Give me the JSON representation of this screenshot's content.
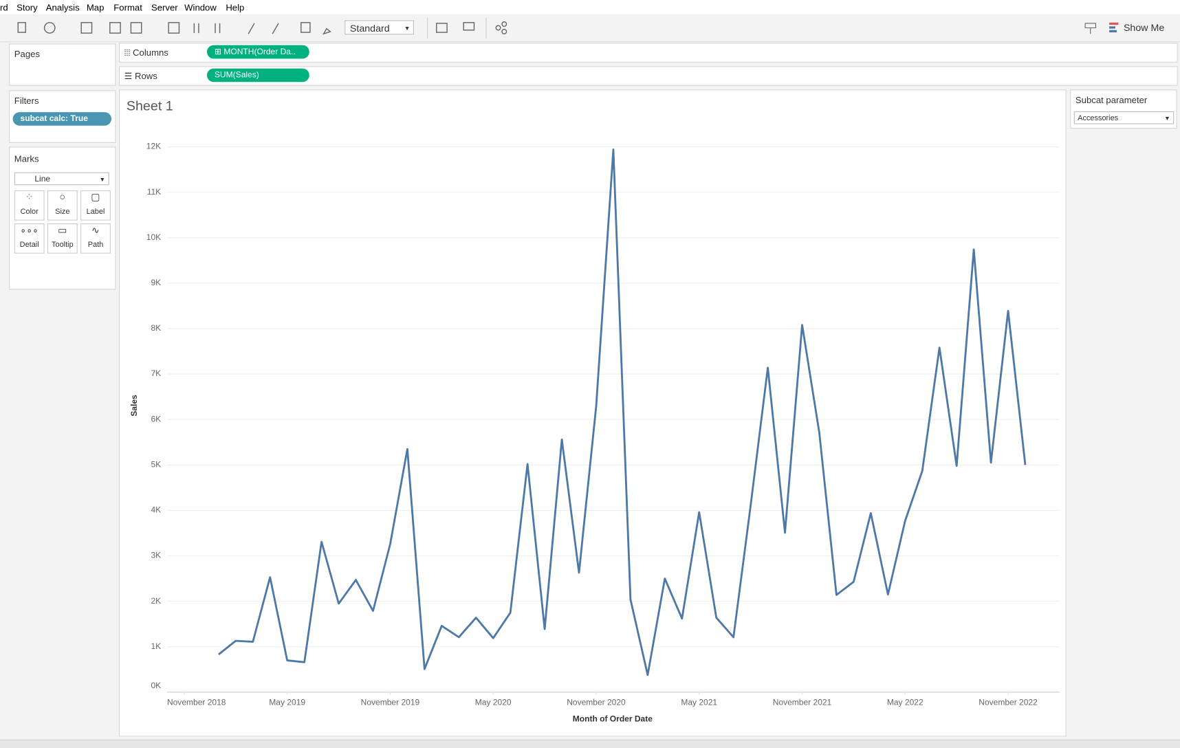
{
  "menu": [
    "rd",
    "Story",
    "Analysis",
    "Map",
    "Format",
    "Server",
    "Window",
    "Help"
  ],
  "toolbar": {
    "fit": "Standard",
    "show_me": "Show Me"
  },
  "shelves": {
    "pages": "Pages",
    "columns_label": "Columns",
    "columns_pill": "MONTH(Order Da..",
    "rows_label": "Rows",
    "rows_pill": "SUM(Sales)"
  },
  "filters": {
    "title": "Filters",
    "pill": "subcat calc: True"
  },
  "marks": {
    "title": "Marks",
    "type": "Line",
    "buttons": [
      "Color",
      "Size",
      "Label",
      "Detail",
      "Tooltip",
      "Path"
    ]
  },
  "parameter": {
    "title": "Subcat parameter",
    "value": "Accessories"
  },
  "chart_data": {
    "type": "line",
    "title": "Sheet 1",
    "x_label": "Month of Order Date",
    "y_label": "Sales",
    "color": "#4e79a7",
    "grid": true,
    "x": [
      "2019-01",
      "2019-02",
      "2019-03",
      "2019-04",
      "2019-05",
      "2019-06",
      "2019-07",
      "2019-08",
      "2019-09",
      "2019-10",
      "2019-11",
      "2019-12",
      "2020-01",
      "2020-02",
      "2020-03",
      "2020-04",
      "2020-05",
      "2020-06",
      "2020-07",
      "2020-08",
      "2020-09",
      "2020-10",
      "2020-11",
      "2020-12",
      "2021-01",
      "2021-02",
      "2021-03",
      "2021-04",
      "2021-05",
      "2021-06",
      "2021-07",
      "2021-08",
      "2021-09",
      "2021-10",
      "2021-11",
      "2021-12",
      "2022-01",
      "2022-02",
      "2022-03",
      "2022-04",
      "2022-05",
      "2022-06",
      "2022-07",
      "2022-08",
      "2022-09",
      "2022-10",
      "2022-11",
      "2022-12"
    ],
    "values": [
      830,
      1130,
      1110,
      2530,
      700,
      660,
      3310,
      1950,
      2470,
      1790,
      3260,
      5350,
      510,
      1460,
      1210,
      1640,
      1190,
      1750,
      5020,
      1390,
      5560,
      2630,
      6290,
      11940,
      2040,
      380,
      2500,
      1620,
      3960,
      1640,
      1210,
      4110,
      7140,
      3510,
      8080,
      5710,
      2140,
      2430,
      3940,
      2150,
      3770,
      4870,
      7580,
      4980,
      9740,
      5050,
      8390,
      5000
    ],
    "xlim": [
      "2018-10",
      "2023-02"
    ],
    "xticks": [
      {
        "value": "2018-11",
        "label": "November 2018"
      },
      {
        "value": "2019-05",
        "label": "May 2019"
      },
      {
        "value": "2019-11",
        "label": "November 2019"
      },
      {
        "value": "2020-05",
        "label": "May 2020"
      },
      {
        "value": "2020-11",
        "label": "November 2020"
      },
      {
        "value": "2021-05",
        "label": "May 2021"
      },
      {
        "value": "2021-11",
        "label": "November 2021"
      },
      {
        "value": "2022-05",
        "label": "May 2022"
      },
      {
        "value": "2022-11",
        "label": "November 2022"
      }
    ],
    "ylim": [
      0,
      12200
    ],
    "yticks": [
      {
        "value": 0,
        "label": "0K"
      },
      {
        "value": 1000,
        "label": "1K"
      },
      {
        "value": 2000,
        "label": "2K"
      },
      {
        "value": 3000,
        "label": "3K"
      },
      {
        "value": 4000,
        "label": "4K"
      },
      {
        "value": 5000,
        "label": "5K"
      },
      {
        "value": 6000,
        "label": "6K"
      },
      {
        "value": 7000,
        "label": "7K"
      },
      {
        "value": 8000,
        "label": "8K"
      },
      {
        "value": 9000,
        "label": "9K"
      },
      {
        "value": 10000,
        "label": "10K"
      },
      {
        "value": 11000,
        "label": "11K"
      },
      {
        "value": 12000,
        "label": "12K"
      }
    ]
  }
}
